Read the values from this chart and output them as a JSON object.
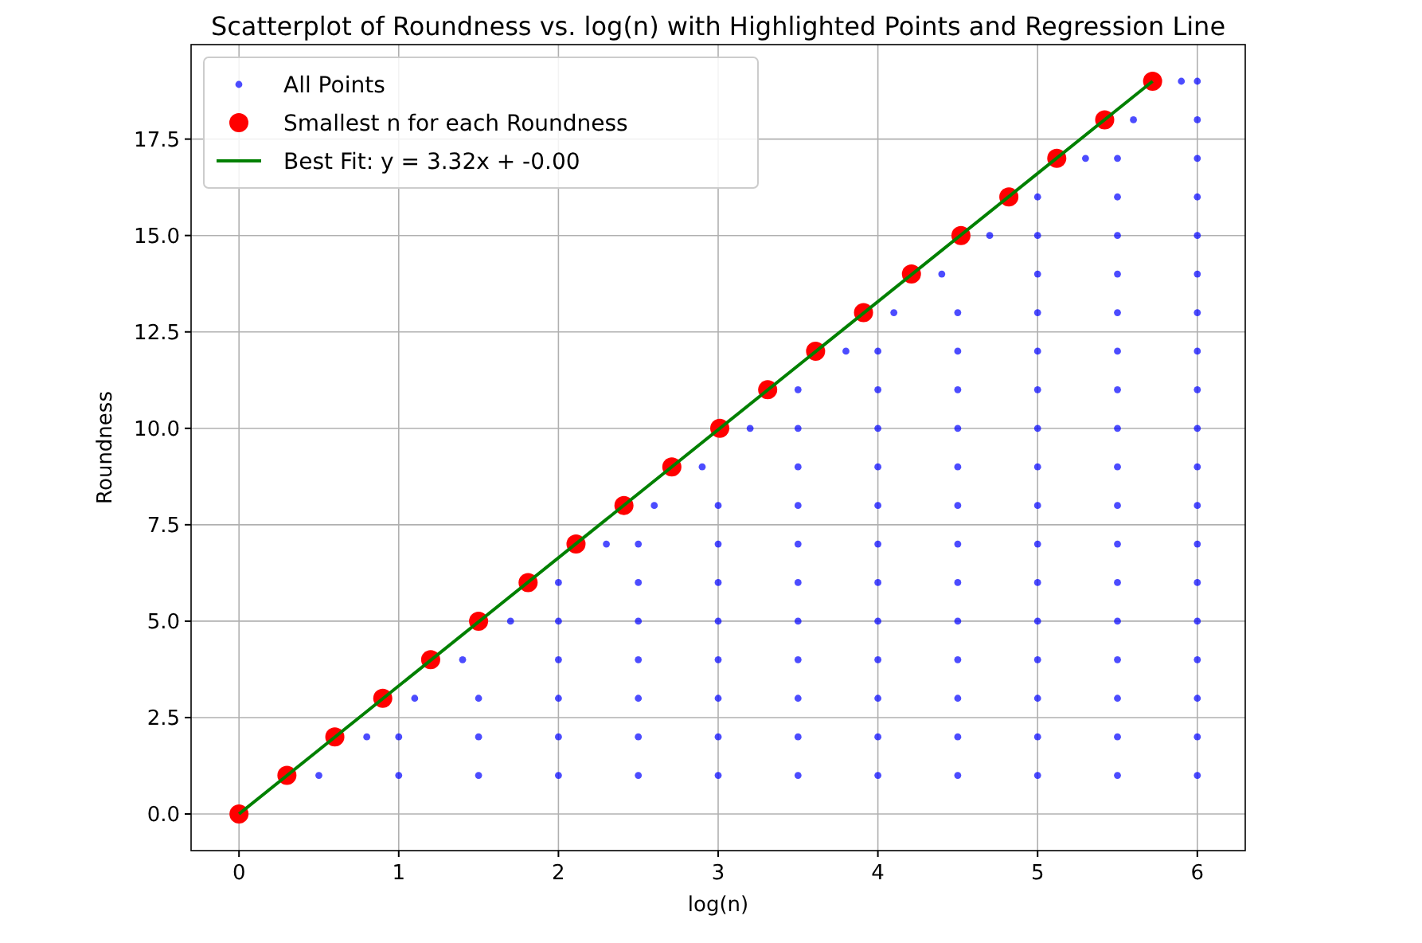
{
  "chart_data": {
    "type": "scatter",
    "title": "Scatterplot of Roundness vs. log(n) with Highlighted Points and Regression Line",
    "xlabel": "log(n)",
    "ylabel": "Roundness",
    "xlim": [
      -0.3,
      6.3
    ],
    "ylim": [
      -0.95,
      19.95
    ],
    "xticks": [
      0,
      1,
      2,
      3,
      4,
      5,
      6
    ],
    "yticks": [
      {
        "value": 0,
        "label": "0.0"
      },
      {
        "value": 2.5,
        "label": "2.5"
      },
      {
        "value": 5,
        "label": "5.0"
      },
      {
        "value": 7.5,
        "label": "7.5"
      },
      {
        "value": 10,
        "label": "10.0"
      },
      {
        "value": 12.5,
        "label": "12.5"
      },
      {
        "value": 15,
        "label": "15.0"
      },
      {
        "value": 17.5,
        "label": "17.5"
      }
    ],
    "grid": true,
    "legend": "top left",
    "marker": "circle",
    "series": [
      {
        "name": "All Points",
        "color": "#0000ff",
        "x": [
          0.5,
          1,
          1.5,
          2,
          2.5,
          3,
          3.5,
          4,
          4.5,
          5,
          5.5,
          6,
          0.8,
          1,
          1.5,
          2,
          2.5,
          3,
          3.5,
          4,
          4.5,
          5,
          5.5,
          6,
          1.1,
          1.5,
          2,
          2.5,
          3,
          3.5,
          4,
          4.5,
          5,
          5.5,
          6,
          1.4,
          2,
          2.5,
          3,
          3.5,
          4,
          4.5,
          5,
          5.5,
          6,
          1.7,
          2,
          2.5,
          3,
          3.5,
          4,
          4.5,
          5,
          5.5,
          6,
          2,
          2.5,
          3,
          3.5,
          4,
          4.5,
          5,
          5.5,
          6,
          2.3,
          2.5,
          3,
          3.5,
          4,
          4.5,
          5,
          5.5,
          6,
          2.6,
          3,
          3.5,
          4,
          4.5,
          5,
          5.5,
          6,
          2.9,
          3.5,
          4,
          4.5,
          5,
          5.5,
          6,
          3.2,
          3.5,
          4,
          4.5,
          5,
          5.5,
          6,
          3.5,
          4,
          4.5,
          5,
          5.5,
          6,
          3.8,
          4,
          4.5,
          5,
          5.5,
          6,
          4.1,
          4.5,
          5,
          5.5,
          6,
          4.4,
          5,
          5.5,
          6,
          4.7,
          5,
          5.5,
          6,
          5,
          5.5,
          6,
          5.3,
          5.5,
          6,
          5.6,
          6,
          5.9,
          6
        ],
        "values": [
          1,
          1,
          1,
          1,
          1,
          1,
          1,
          1,
          1,
          1,
          1,
          1,
          2,
          2,
          2,
          2,
          2,
          2,
          2,
          2,
          2,
          2,
          2,
          2,
          3,
          3,
          3,
          3,
          3,
          3,
          3,
          3,
          3,
          3,
          3,
          4,
          4,
          4,
          4,
          4,
          4,
          4,
          4,
          4,
          4,
          5,
          5,
          5,
          5,
          5,
          5,
          5,
          5,
          5,
          5,
          6,
          6,
          6,
          6,
          6,
          6,
          6,
          6,
          6,
          7,
          7,
          7,
          7,
          7,
          7,
          7,
          7,
          7,
          8,
          8,
          8,
          8,
          8,
          8,
          8,
          8,
          9,
          9,
          9,
          9,
          9,
          9,
          9,
          10,
          10,
          10,
          10,
          10,
          10,
          10,
          11,
          11,
          11,
          11,
          11,
          11,
          12,
          12,
          12,
          12,
          12,
          12,
          13,
          13,
          13,
          13,
          13,
          14,
          14,
          14,
          14,
          15,
          15,
          15,
          15,
          16,
          16,
          16,
          17,
          17,
          17,
          18,
          18,
          19,
          19
        ]
      },
      {
        "name": "Smallest n for each Roundness",
        "color": "#ff0000",
        "x": [
          0,
          0.3,
          0.6,
          0.9,
          1.2,
          1.5,
          1.81,
          2.11,
          2.41,
          2.71,
          3.01,
          3.31,
          3.61,
          3.91,
          4.21,
          4.52,
          4.82,
          5.12,
          5.42,
          5.72
        ],
        "values": [
          0,
          1,
          2,
          3,
          4,
          5,
          6,
          7,
          8,
          9,
          10,
          11,
          12,
          13,
          14,
          15,
          16,
          17,
          18,
          19
        ]
      },
      {
        "name": "Best Fit: y = 3.32x + -0.00",
        "type": "line",
        "marker": "none",
        "color": "#008000",
        "x": [
          0,
          5.72
        ],
        "values": [
          0,
          19
        ]
      }
    ]
  }
}
